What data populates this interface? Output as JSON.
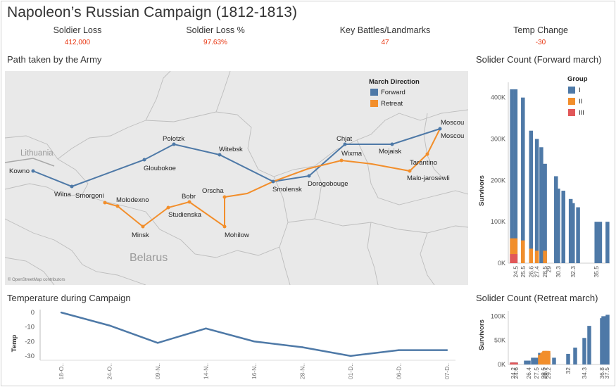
{
  "dashboard": {
    "title": "Napoleon’s Russian Campaign (1812-1813)",
    "kpis": [
      {
        "label": "Soldier Loss",
        "value": "412,000"
      },
      {
        "label": "Soldier Loss %",
        "value": "97.63%"
      },
      {
        "label": "Key Battles/Landmarks",
        "value": "47"
      },
      {
        "label": "Temp Change",
        "value": "-30"
      }
    ],
    "colors": {
      "forward": "#4e79a7",
      "retreat": "#f28e2b",
      "group_III": "#e15759",
      "kpi_value": "#e8340f"
    }
  },
  "map": {
    "title": "Path taken by the Army",
    "region_labels": [
      "Lithuania",
      "Belarus"
    ],
    "attribution": "© OpenStreetMap contributors",
    "legend": {
      "title": "March Direction",
      "items": [
        "Forward",
        "Retreat"
      ]
    },
    "cities": [
      "Kowno",
      "Wilna",
      "Smorgoni",
      "Molodexno",
      "Gloubokoe",
      "Minsk",
      "Studienska",
      "Polotzk",
      "Bobr",
      "Witebsk",
      "Orscha",
      "Mohilow",
      "Smolensk",
      "Dorogobouge",
      "Chjat",
      "Wixma",
      "Mojaisk",
      "Tarantino",
      "Malo-jarosewli",
      "Moscou",
      "Moscou"
    ]
  },
  "chart_data": [
    {
      "type": "line",
      "title": "Temperature during Campaign",
      "ylabel": "Temp",
      "xlabel": "",
      "x": [
        "18-O..",
        "24-O..",
        "09-N..",
        "14-N..",
        "16-N..",
        "28-N..",
        "01-D..",
        "06-D..",
        "07-D.."
      ],
      "values": [
        0,
        -9,
        -21,
        -11,
        -20,
        -24,
        -30,
        -26,
        -26
      ],
      "ylim": [
        -33,
        2
      ],
      "yticks": [
        0,
        -10,
        -20,
        -30
      ],
      "ytick_labels": [
        "0",
        "-10",
        "-20",
        "-30"
      ]
    },
    {
      "type": "bar",
      "title": "Solider Count (Forward march)",
      "ylabel": "Survivors",
      "legend": {
        "title": "Group",
        "items": [
          "I",
          "II",
          "III"
        ]
      },
      "ylim": [
        0,
        430000
      ],
      "yticks": [
        0,
        100000,
        200000,
        300000,
        400000
      ],
      "ytick_labels": [
        "0K",
        "100K",
        "200K",
        "300K",
        "400K"
      ],
      "categories": [
        "24.5",
        "25.5",
        "26.6",
        "27.4",
        "28.5",
        "29",
        "30.3",
        "32.3",
        "35.5"
      ],
      "x": [
        24.0,
        24.5,
        25.0,
        25.5,
        26.0,
        26.6,
        27.0,
        27.4,
        28.0,
        28.5,
        29.0,
        30.0,
        30.3,
        31.0,
        32.0,
        32.3,
        33.0,
        35.5,
        36.0,
        37.0
      ],
      "series": [
        {
          "name": "I",
          "values": [
            420000,
            420000,
            0,
            400000,
            0,
            320000,
            0,
            300000,
            280000,
            240000,
            0,
            210000,
            180000,
            175000,
            155000,
            145000,
            135000,
            100000,
            100000,
            100000
          ]
        },
        {
          "name": "II",
          "values": [
            60000,
            60000,
            0,
            55000,
            0,
            35000,
            0,
            30000,
            0,
            30000,
            0,
            0,
            0,
            0,
            0,
            0,
            0,
            0,
            0,
            0
          ]
        },
        {
          "name": "III",
          "values": [
            22000,
            22000,
            0,
            0,
            0,
            0,
            0,
            0,
            0,
            0,
            0,
            0,
            0,
            0,
            0,
            0,
            0,
            0,
            0,
            0
          ]
        }
      ]
    },
    {
      "type": "bar",
      "title": "Solider Count (Retreat march)",
      "ylabel": "Survivors",
      "ylim": [
        0,
        105000
      ],
      "yticks": [
        0,
        50000,
        100000
      ],
      "ytick_labels": [
        "0K",
        "50K",
        "100K"
      ],
      "categories": [
        "24.2",
        "24.6",
        "26.4",
        "27.5",
        "28.5",
        "28.7",
        "29.2",
        "32",
        "34.3",
        "36.8",
        "37.5"
      ],
      "x": [
        24.0,
        24.2,
        24.4,
        24.6,
        26.0,
        26.4,
        27.0,
        27.5,
        28.0,
        28.3,
        28.5,
        28.6,
        28.7,
        29.0,
        29.2,
        30.0,
        32.0,
        33.0,
        34.3,
        35.0,
        36.8,
        37.0,
        37.3,
        37.5,
        37.6
      ],
      "series": [
        {
          "name": "I",
          "values": [
            4000,
            4000,
            4000,
            4000,
            8000,
            8000,
            14000,
            14000,
            24000,
            24000,
            24000,
            24000,
            24000,
            24000,
            24000,
            14000,
            22000,
            35000,
            55000,
            80000,
            96000,
            100000,
            100000,
            100000,
            103000
          ]
        },
        {
          "name": "II",
          "values": [
            0,
            0,
            0,
            0,
            0,
            0,
            0,
            0,
            20000,
            24000,
            26000,
            28000,
            28000,
            28000,
            28000,
            0,
            0,
            0,
            0,
            0,
            0,
            0,
            0,
            0,
            0
          ]
        },
        {
          "name": "III",
          "values": [
            4000,
            4000,
            0,
            4000,
            0,
            0,
            0,
            0,
            0,
            0,
            0,
            0,
            0,
            0,
            0,
            0,
            0,
            0,
            0,
            0,
            0,
            0,
            0,
            0,
            0
          ]
        }
      ]
    }
  ]
}
